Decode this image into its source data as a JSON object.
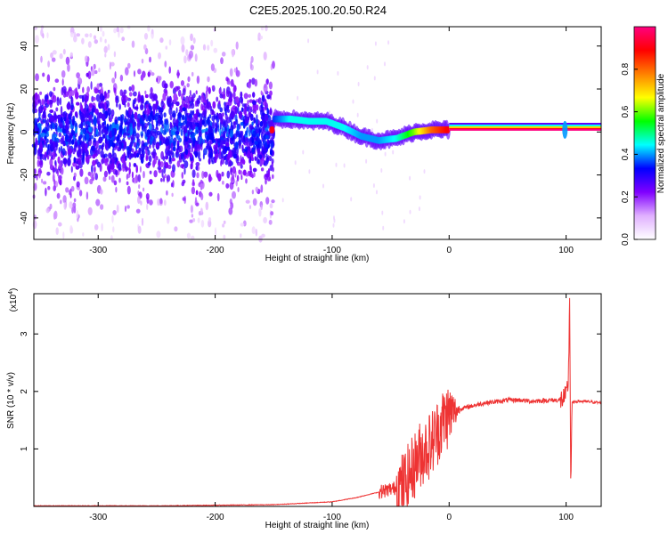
{
  "title": "C2E5.2025.100.20.50.R24",
  "chart_data": [
    {
      "type": "heatmap",
      "title": "C2E5.2025.100.20.50.R24",
      "xlabel": "Height of straight line (km)",
      "ylabel": "Frequency (Hz)",
      "xlim": [
        -355,
        130
      ],
      "ylim": [
        -50,
        49
      ],
      "xticks": [
        -300,
        -200,
        -100,
        0,
        100
      ],
      "xtick_labels": [
        "-300",
        "-200",
        "-100",
        "0",
        "100"
      ],
      "yticks": [
        -40,
        -20,
        0,
        20,
        40
      ],
      "ytick_labels": [
        "-40",
        "-20",
        "0",
        "20",
        "40"
      ],
      "colorbar": {
        "label": "Normalized spectral amplitude",
        "range": [
          0,
          1
        ],
        "ticks": [
          0.0,
          0.2,
          0.4,
          0.6,
          0.8
        ],
        "tick_labels": [
          "0.0",
          "0.2",
          "0.4",
          "0.6",
          "0.8"
        ],
        "colors": [
          "#ffffff",
          "#e0b0ff",
          "#8000ff",
          "#0000ff",
          "#00ffff",
          "#00ff00",
          "#ffff00",
          "#ff8000",
          "#ff0000",
          "#ff0080"
        ]
      },
      "ridge": {
        "x": [
          -150,
          -135,
          -120,
          -105,
          -90,
          -75,
          -60,
          -45,
          -30,
          -15,
          0,
          130
        ],
        "frequency": [
          6,
          6,
          5,
          5,
          2,
          -2,
          -4,
          -3,
          0,
          1,
          1,
          1
        ],
        "amplitude": [
          0.35,
          0.45,
          0.45,
          0.45,
          0.45,
          0.4,
          0.4,
          0.45,
          0.6,
          0.8,
          0.9,
          0.9
        ]
      },
      "noise_region": {
        "x_range": [
          -355,
          -150
        ],
        "frequency_center": 0,
        "frequency_spread": 12
      }
    },
    {
      "type": "line",
      "xlabel": "Height of straight line (km)",
      "ylabel": "SNR (10 * v/v)",
      "y_multiplier": "(x10",
      "y_multiplier_exp": "4",
      "y_multiplier_close": ")",
      "xlim": [
        -355,
        130
      ],
      "ylim": [
        0,
        3.7
      ],
      "xticks": [
        -300,
        -200,
        -100,
        0,
        100
      ],
      "xtick_labels": [
        "-300",
        "-200",
        "-100",
        "0",
        "100"
      ],
      "yticks": [
        1,
        2,
        3
      ],
      "ytick_labels": [
        "1",
        "2",
        "3"
      ],
      "color": "#ee3333",
      "series": [
        {
          "x": [
            -355,
            -300,
            -250,
            -200,
            -150,
            -100,
            -80,
            -60,
            -50,
            -40,
            -35,
            -30,
            -25,
            -20,
            -15,
            -10,
            -5,
            0,
            10,
            20,
            30,
            40,
            50,
            60,
            70,
            80,
            90,
            95,
            100,
            102,
            103,
            104,
            105,
            110,
            120,
            130
          ],
          "y": [
            0.01,
            0.01,
            0.01,
            0.02,
            0.03,
            0.08,
            0.15,
            0.25,
            0.3,
            0.35,
            0.5,
            0.7,
            0.9,
            1.0,
            1.1,
            1.3,
            1.5,
            1.6,
            1.7,
            1.75,
            1.8,
            1.82,
            1.85,
            1.85,
            1.83,
            1.84,
            1.85,
            1.85,
            1.9,
            2.2,
            3.7,
            0.25,
            1.8,
            1.83,
            1.82,
            1.8
          ]
        }
      ]
    }
  ]
}
